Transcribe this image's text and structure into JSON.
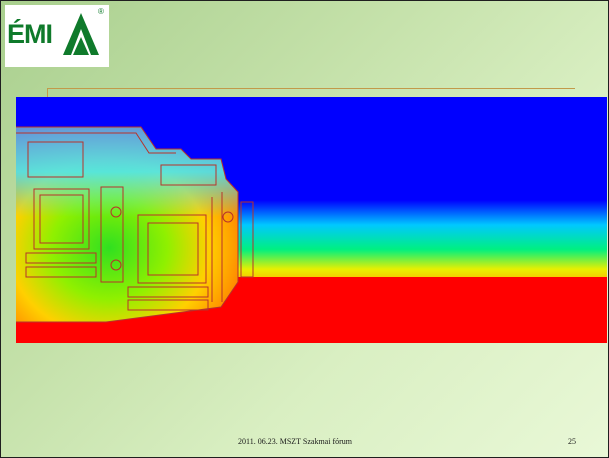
{
  "logo": {
    "text": "ÉMI",
    "mark": "registered-mark",
    "reg_symbol": "®",
    "color": "#0f7a2b"
  },
  "visualization": {
    "icon": "thermal-simulation-image",
    "palette": {
      "cold": "#0000ff",
      "cool": "#00c8ff",
      "mid": "#00e000",
      "warm": "#ffe000",
      "hot": "#ff0000",
      "outline": "#b8322a"
    }
  },
  "footer": {
    "text": "2011. 06.23. MSZT Szakmai fórum",
    "page_number": "25"
  }
}
